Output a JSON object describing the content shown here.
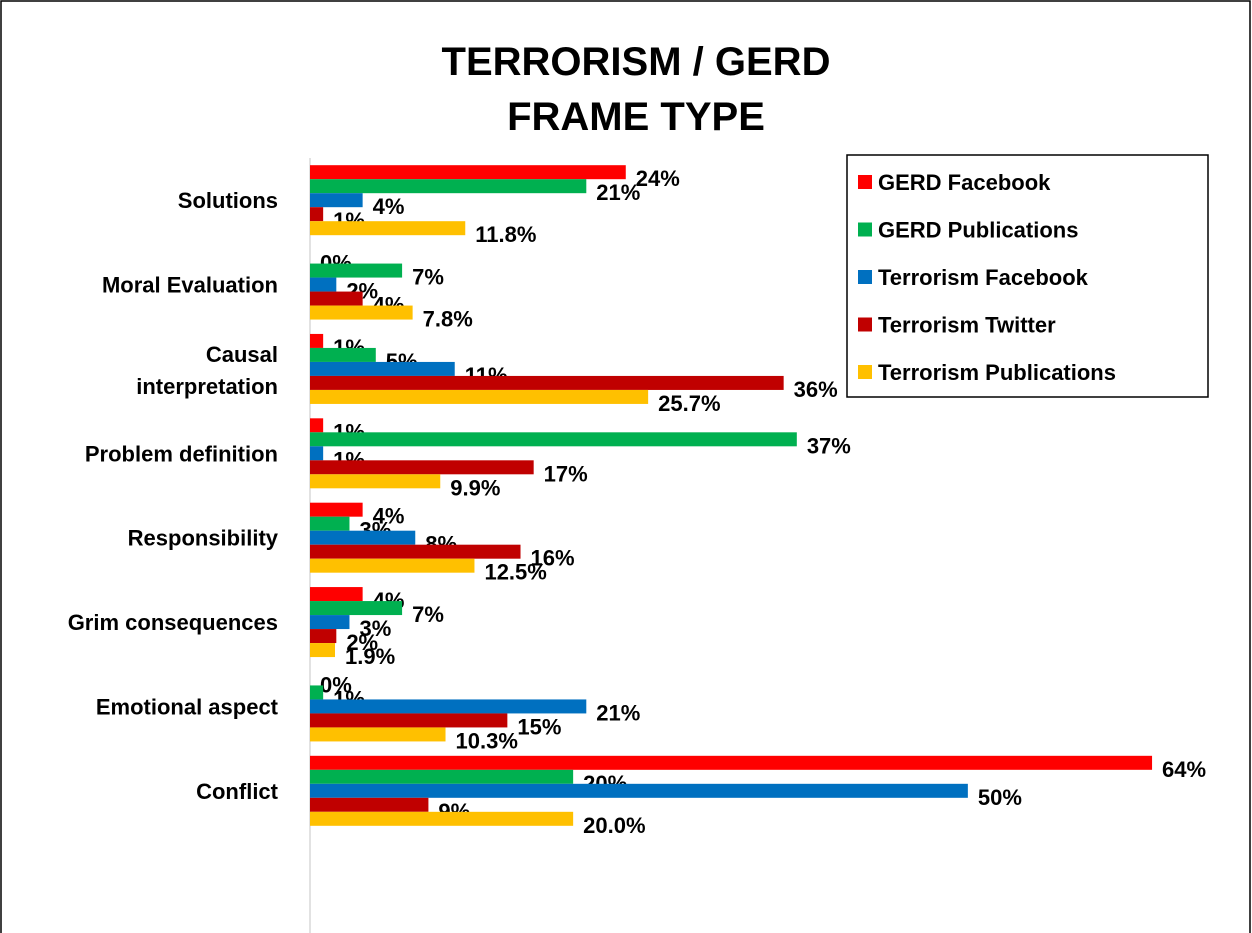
{
  "chart_data": {
    "type": "bar",
    "orientation": "horizontal",
    "title": [
      "TERRORISM / GERD",
      "FRAME TYPE"
    ],
    "categories": [
      "Solutions",
      "Moral Evaluation",
      "Causal interpretation",
      "Problem definition",
      "Responsibility",
      "Grim consequences",
      "Emotional aspect",
      "Conflict"
    ],
    "xlim": [
      0,
      70
    ],
    "legend": "top-right",
    "series": [
      {
        "name": "GERD Facebook",
        "color": "#ff0000",
        "values": [
          24,
          0,
          1,
          1,
          4,
          4,
          0,
          64
        ],
        "value_labels": [
          "24%",
          "0%",
          "1%",
          "1%",
          "4%",
          "4%",
          "0%",
          "64%"
        ]
      },
      {
        "name": "GERD Publications",
        "color": "#00b050",
        "values": [
          21,
          7,
          5,
          37,
          3,
          7,
          1,
          20
        ],
        "value_labels": [
          "21%",
          "7%",
          "5%",
          "37%",
          "3%",
          "7%",
          "1%",
          "20%"
        ]
      },
      {
        "name": "Terrorism Facebook",
        "color": "#0070c0",
        "values": [
          4,
          2,
          11,
          1,
          8,
          3,
          21,
          50
        ],
        "value_labels": [
          "4%",
          "2%",
          "11%",
          "1%",
          "8%",
          "3%",
          "21%",
          "50%"
        ]
      },
      {
        "name": "Terrorism Twitter",
        "color": "#c00000",
        "values": [
          1,
          4,
          36,
          17,
          16,
          2,
          15,
          9
        ],
        "value_labels": [
          "1%",
          "4%",
          "36%",
          "17%",
          "16%",
          "2%",
          "15%",
          "9%"
        ]
      },
      {
        "name": "Terrorism Publications",
        "color": "#ffc000",
        "values": [
          11.8,
          7.8,
          25.7,
          9.9,
          12.5,
          1.9,
          10.3,
          20.0
        ],
        "value_labels": [
          "11.8%",
          "7.8%",
          "25.7%",
          "9.9%",
          "12.5%",
          "1.9%",
          "10.3%",
          "20.0%"
        ]
      }
    ]
  }
}
